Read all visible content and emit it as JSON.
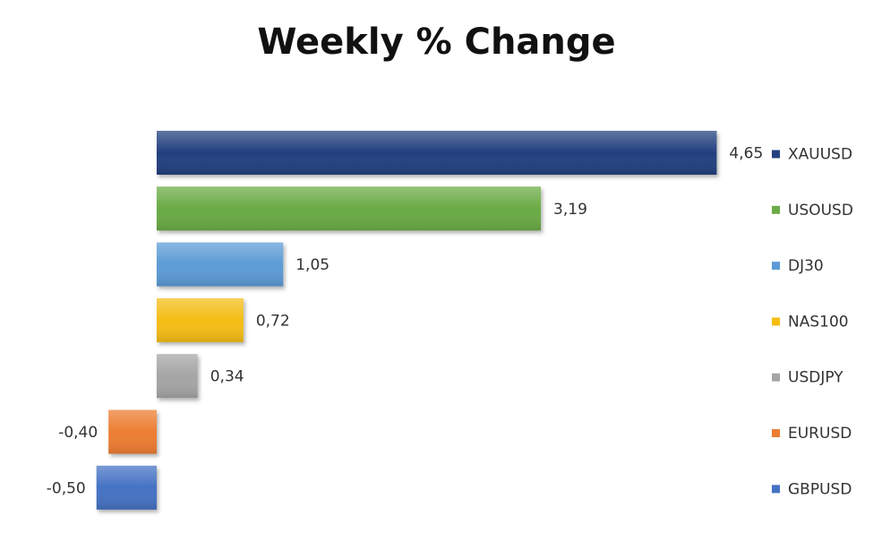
{
  "chart_data": {
    "type": "bar",
    "orientation": "horizontal",
    "title": "Weekly % Change",
    "categories": [
      "XAUUSD",
      "USOUSD",
      "DJ30",
      "NAS100",
      "USDJPY",
      "EURUSD",
      "GBPUSD"
    ],
    "values": [
      4.65,
      3.19,
      1.05,
      0.72,
      0.34,
      -0.4,
      -0.5
    ],
    "value_labels": [
      "4,65",
      "3,19",
      "1,05",
      "0,72",
      "0,34",
      "-0,40",
      "-0,50"
    ],
    "colors": [
      "#22407f",
      "#6aab45",
      "#5b9bd5",
      "#f5bd13",
      "#a5a5a5",
      "#ed7d31",
      "#4472c4"
    ],
    "legend_position": "right",
    "grid": false,
    "xlabel": "",
    "ylabel": ""
  }
}
